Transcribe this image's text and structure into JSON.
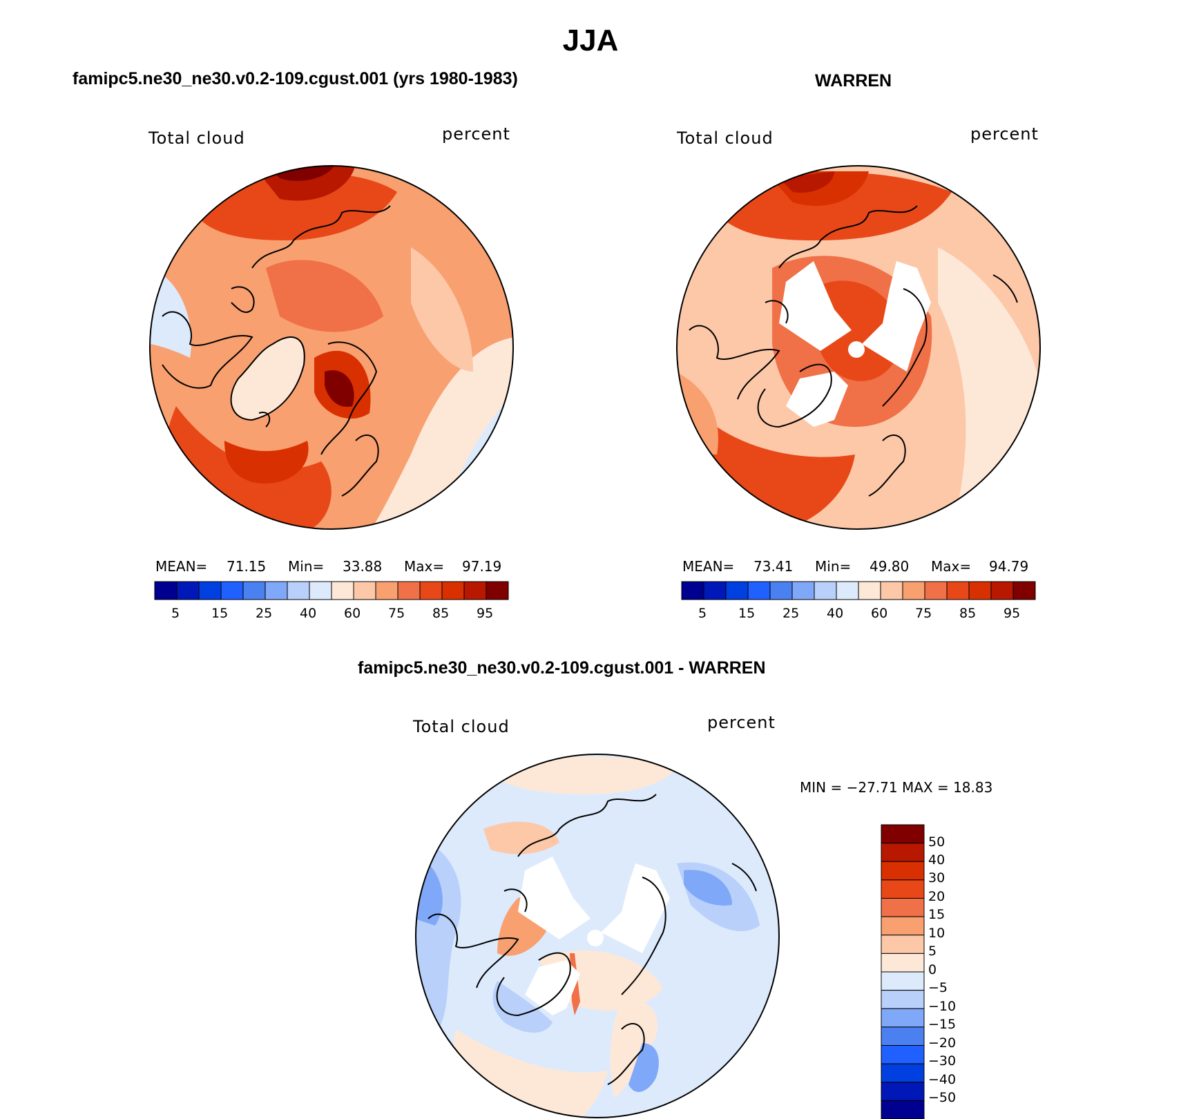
{
  "figure": {
    "season": "JJA",
    "colors": {
      "abs_levels": [
        "#000090",
        "#0018b8",
        "#0040e0",
        "#2060ff",
        "#4a80f0",
        "#80a8f8",
        "#b8d0fa",
        "#dceafc",
        "#fde8d8",
        "#fcc8a8",
        "#f8a070",
        "#f07048",
        "#e84818",
        "#d83000",
        "#b81800",
        "#800000"
      ],
      "diff_levels": [
        "#000090",
        "#0018b8",
        "#0040e0",
        "#2060ff",
        "#4a80f0",
        "#80a8f8",
        "#b8d0fa",
        "#dceafc",
        "#fde8d8",
        "#fcc8a8",
        "#f8a070",
        "#f07048",
        "#e84818",
        "#d83000",
        "#b81800",
        "#800000"
      ],
      "coast": "#000000",
      "missing": "#ffffff"
    }
  },
  "panels": {
    "model": {
      "case_title": "famipc5.ne30_ne30.v0.2-109.cgust.001 (yrs 1980-1983)",
      "variable": "Total cloud",
      "units": "percent",
      "mean_label": "MEAN=",
      "mean": "71.15",
      "min_label": "Min=",
      "min": "33.88",
      "max_label": "Max=",
      "max": "97.19",
      "colorbar_labels": [
        "5",
        "15",
        "25",
        "40",
        "60",
        "75",
        "85",
        "95"
      ]
    },
    "obs": {
      "case_title": "WARREN",
      "variable": "Total cloud",
      "units": "percent",
      "mean_label": "MEAN=",
      "mean": "73.41",
      "min_label": "Min=",
      "min": "49.80",
      "max_label": "Max=",
      "max": "94.79",
      "colorbar_labels": [
        "5",
        "15",
        "25",
        "40",
        "60",
        "75",
        "85",
        "95"
      ]
    },
    "diff": {
      "case_title": "famipc5.ne30_ne30.v0.2-109.cgust.001 - WARREN",
      "variable": "Total cloud",
      "units": "percent",
      "minmax_text": "MIN = −27.71 MAX =   18.83",
      "colorbar_labels": [
        "50",
        "40",
        "30",
        "20",
        "15",
        "10",
        "5",
        "0",
        "−5",
        "−10",
        "−15",
        "−20",
        "−30",
        "−40",
        "−50"
      ]
    }
  }
}
